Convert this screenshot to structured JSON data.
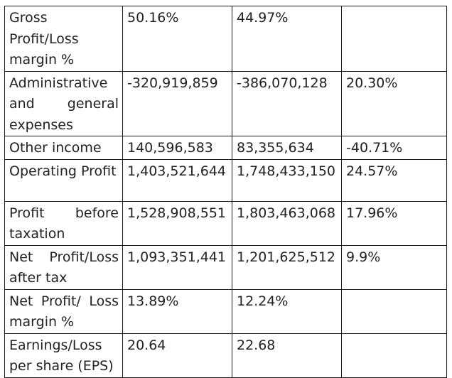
{
  "table": {
    "rows": [
      {
        "label": "Gross Profit/Loss margin %",
        "col1": "50.16%",
        "col2": "44.97%",
        "col3": ""
      },
      {
        "label": "Administrative and general expenses",
        "col1": "-320,919,859",
        "col2": "-386,070,128",
        "col3": "20.30%"
      },
      {
        "label": "Other income",
        "col1": "140,596,583",
        "col2": "83,355,634",
        "col3": "-40.71%"
      },
      {
        "label": "Operating Profit",
        "col1": "1,403,521,644",
        "col2": "1,748,433,150",
        "col3": "24.57%"
      },
      {
        "label": "Profit before taxation",
        "col1": "1,528,908,551",
        "col2": "1,803,463,068",
        "col3": "17.96%"
      },
      {
        "label": "Net Profit/Loss after tax",
        "col1": "1,093,351,441",
        "col2": "1,201,625,512",
        "col3": "9.9%"
      },
      {
        "label": "Net Profit/ Loss margin %",
        "col1": "13.89%",
        "col2": "12.24%",
        "col3": ""
      },
      {
        "label": "Earnings/Loss per share (EPS)",
        "col1": "20.64",
        "col2": "22.68",
        "col3": ""
      }
    ]
  }
}
